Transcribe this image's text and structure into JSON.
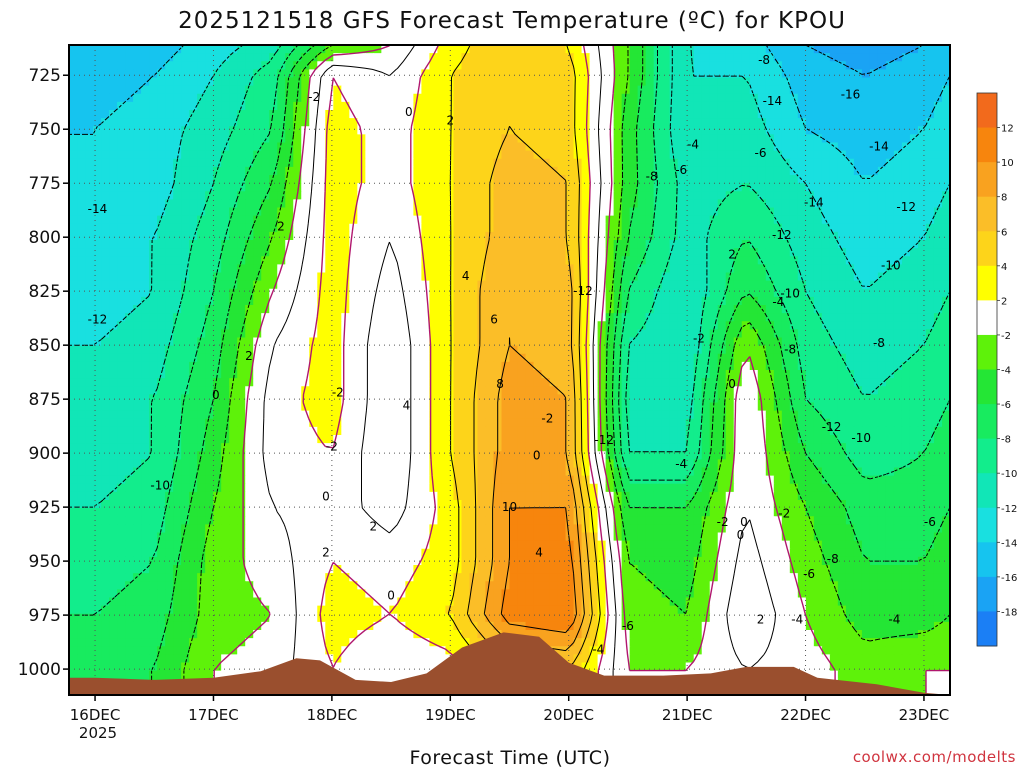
{
  "chart_data": {
    "type": "heatmap",
    "title": "2025121518 GFS Forecast Temperature (ºC) for KPOU",
    "xlabel": "Forecast Time (UTC)",
    "ylabel": "",
    "credit": "coolwx.com/modelts",
    "x_ticks": [
      "16DEC",
      "17DEC",
      "18DEC",
      "19DEC",
      "20DEC",
      "21DEC",
      "22DEC",
      "23DEC"
    ],
    "x_year": "2025",
    "y_ticks": [
      "725",
      "750",
      "775",
      "800",
      "825",
      "850",
      "875",
      "900",
      "925",
      "950",
      "975",
      "1000"
    ],
    "ylim": [
      1012,
      711
    ],
    "xlim": [
      -0.22,
      7.22
    ],
    "x_days": [
      0,
      0.5,
      1,
      1.5,
      2,
      2.5,
      3,
      3.5,
      4,
      4.5,
      5,
      5.5,
      6,
      6.5,
      7,
      7.22
    ],
    "p_levels": [
      711,
      725,
      750,
      775,
      800,
      825,
      850,
      875,
      900,
      925,
      950,
      975,
      1000,
      1012
    ],
    "grid": true,
    "colorbar": {
      "ticks": [
        "12",
        "10",
        "8",
        "6",
        "4",
        "2",
        "-2",
        "-4",
        "-6",
        "-8",
        "-10",
        "-12",
        "-14",
        "-16",
        "-18"
      ],
      "bands": [
        {
          "min": 12,
          "max": 14,
          "color": "#f26a1c"
        },
        {
          "min": 10,
          "max": 12,
          "color": "#f7850d"
        },
        {
          "min": 8,
          "max": 10,
          "color": "#f9a21f"
        },
        {
          "min": 6,
          "max": 8,
          "color": "#fbbe28"
        },
        {
          "min": 4,
          "max": 6,
          "color": "#fdd41a"
        },
        {
          "min": 2,
          "max": 4,
          "color": "#ffff00"
        },
        {
          "min": -2,
          "max": 2,
          "color": "#ffffff"
        },
        {
          "min": -4,
          "max": -2,
          "color": "#5ef20a"
        },
        {
          "min": -6,
          "max": -4,
          "color": "#24e635"
        },
        {
          "min": -8,
          "max": -6,
          "color": "#18eb5f"
        },
        {
          "min": -10,
          "max": -8,
          "color": "#12ed8c"
        },
        {
          "min": -12,
          "max": -10,
          "color": "#11e6b7"
        },
        {
          "min": -14,
          "max": -12,
          "color": "#19e0e0"
        },
        {
          "min": -16,
          "max": -14,
          "color": "#16c4ef"
        },
        {
          "min": -18,
          "max": -16,
          "color": "#1aa3f4"
        },
        {
          "min": -20,
          "max": -18,
          "color": "#1b7ff5"
        }
      ]
    },
    "temperature_grid": [
      [
        -16,
        -15,
        -13,
        -11,
        -4,
        -2,
        3,
        6,
        4,
        -4,
        -12,
        -13,
        -16,
        -17,
        -16,
        -15
      ],
      [
        -15,
        -14,
        -12,
        -9,
        2,
        0,
        4,
        6,
        5,
        -4,
        -12,
        -12,
        -15,
        -16,
        -15,
        -14
      ],
      [
        -14,
        -13,
        -11,
        -8,
        3,
        1,
        4,
        6,
        5,
        -5,
        -12,
        -11,
        -14,
        -15,
        -14,
        -13
      ],
      [
        -14,
        -13,
        -10,
        -6,
        3,
        1,
        4,
        7,
        6,
        -5,
        -11,
        -10,
        -12,
        -14,
        -13,
        -12
      ],
      [
        -13,
        -12,
        -9,
        -4,
        3,
        0,
        4,
        7,
        6,
        -6,
        -11,
        -8,
        -11,
        -13,
        -12,
        -11
      ],
      [
        -13,
        -12,
        -8,
        -2,
        3,
        -1,
        4,
        8,
        7,
        -8,
        -12,
        -6,
        -10,
        -12,
        -11,
        -10
      ],
      [
        -12,
        -11,
        -7,
        0,
        3,
        -2,
        4,
        8,
        7,
        -10,
        -12,
        -2,
        -9,
        -11,
        -10,
        -9
      ],
      [
        -11,
        -10,
        -6,
        1,
        3,
        -2,
        4,
        9,
        8,
        -11,
        -11,
        0,
        -8,
        -10,
        -9,
        -8
      ],
      [
        -11,
        -10,
        -5,
        1,
        2,
        -2,
        4,
        9,
        8,
        -10,
        -10,
        0,
        -6,
        -9,
        -8,
        -7
      ],
      [
        -10,
        -9,
        -4,
        0,
        1,
        -1,
        3,
        10,
        10,
        -6,
        -6,
        0,
        -4,
        -7,
        -7,
        -6
      ],
      [
        -9,
        -8,
        -3,
        -1,
        2,
        1,
        3,
        10,
        11,
        -4,
        -5,
        1,
        -3,
        -6,
        -6,
        -5
      ],
      [
        -8,
        -7,
        -3,
        -2,
        3,
        2,
        4,
        11,
        12,
        -3,
        -4,
        2,
        -2,
        -5,
        -5,
        -4
      ],
      [
        -7,
        -6,
        -2,
        -1,
        2,
        0,
        1,
        5,
        6,
        -2,
        -2,
        0,
        -1,
        -3,
        -2,
        -2
      ],
      [
        -7,
        -6,
        -2,
        -1,
        2,
        0,
        1,
        5,
        6,
        -2,
        -2,
        0,
        -1,
        -3,
        -2,
        -2
      ]
    ],
    "contour_labels": [
      {
        "text": "-14",
        "x": 0.02,
        "p": 787
      },
      {
        "text": "-12",
        "x": 0.02,
        "p": 838
      },
      {
        "text": "-10",
        "x": 0.55,
        "p": 915
      },
      {
        "text": "0",
        "x": 1.02,
        "p": 873
      },
      {
        "text": "2",
        "x": 1.3,
        "p": 855
      },
      {
        "text": "2",
        "x": 1.57,
        "p": 795
      },
      {
        "text": "-2",
        "x": 1.85,
        "p": 735
      },
      {
        "text": "-2",
        "x": 2.05,
        "p": 872
      },
      {
        "text": "-2",
        "x": 2.0,
        "p": 897
      },
      {
        "text": "0",
        "x": 1.95,
        "p": 920
      },
      {
        "text": "2",
        "x": 1.95,
        "p": 946
      },
      {
        "text": "0",
        "x": 2.5,
        "p": 966
      },
      {
        "text": "2",
        "x": 2.35,
        "p": 934
      },
      {
        "text": "4",
        "x": 2.63,
        "p": 878
      },
      {
        "text": "0",
        "x": 2.65,
        "p": 742
      },
      {
        "text": "2",
        "x": 3.0,
        "p": 746
      },
      {
        "text": "4",
        "x": 3.13,
        "p": 818
      },
      {
        "text": "6",
        "x": 3.37,
        "p": 838
      },
      {
        "text": "8",
        "x": 3.42,
        "p": 868
      },
      {
        "text": "10",
        "x": 3.5,
        "p": 925
      },
      {
        "text": "4",
        "x": 3.75,
        "p": 946
      },
      {
        "text": "0",
        "x": 3.73,
        "p": 901
      },
      {
        "text": "-2",
        "x": 3.82,
        "p": 884
      },
      {
        "text": "-12",
        "x": 4.12,
        "p": 825
      },
      {
        "text": "-12",
        "x": 4.3,
        "p": 894
      },
      {
        "text": "-4",
        "x": 4.25,
        "p": 991
      },
      {
        "text": "-6",
        "x": 4.5,
        "p": 980
      },
      {
        "text": "-8",
        "x": 4.7,
        "p": 772
      },
      {
        "text": "-6",
        "x": 4.95,
        "p": 769
      },
      {
        "text": "-4",
        "x": 5.05,
        "p": 757
      },
      {
        "text": "-4",
        "x": 4.95,
        "p": 905
      },
      {
        "text": "-2",
        "x": 5.1,
        "p": 847
      },
      {
        "text": "2",
        "x": 5.38,
        "p": 808
      },
      {
        "text": "0",
        "x": 5.38,
        "p": 868
      },
      {
        "text": "-2",
        "x": 5.3,
        "p": 932
      },
      {
        "text": "0",
        "x": 5.48,
        "p": 932
      },
      {
        "text": "0",
        "x": 5.45,
        "p": 938
      },
      {
        "text": "-8",
        "x": 5.65,
        "p": 718
      },
      {
        "text": "-14",
        "x": 5.72,
        "p": 737
      },
      {
        "text": "-6",
        "x": 5.62,
        "p": 761
      },
      {
        "text": "-12",
        "x": 5.8,
        "p": 799
      },
      {
        "text": "-10",
        "x": 5.87,
        "p": 826
      },
      {
        "text": "-8",
        "x": 5.87,
        "p": 852
      },
      {
        "text": "-4",
        "x": 5.77,
        "p": 830
      },
      {
        "text": "-4",
        "x": 5.93,
        "p": 977
      },
      {
        "text": "2",
        "x": 5.62,
        "p": 977
      },
      {
        "text": "-2",
        "x": 5.82,
        "p": 928
      },
      {
        "text": "-6",
        "x": 6.03,
        "p": 956
      },
      {
        "text": "-8",
        "x": 6.23,
        "p": 949
      },
      {
        "text": "-16",
        "x": 6.38,
        "p": 734
      },
      {
        "text": "-14",
        "x": 6.07,
        "p": 784
      },
      {
        "text": "-14",
        "x": 6.62,
        "p": 758
      },
      {
        "text": "-12",
        "x": 6.85,
        "p": 786
      },
      {
        "text": "-10",
        "x": 6.72,
        "p": 813
      },
      {
        "text": "-8",
        "x": 6.62,
        "p": 849
      },
      {
        "text": "-10",
        "x": 6.47,
        "p": 893
      },
      {
        "text": "-12",
        "x": 6.22,
        "p": 888
      },
      {
        "text": "-6",
        "x": 7.05,
        "p": 932
      },
      {
        "text": "-4",
        "x": 6.75,
        "p": 977
      }
    ],
    "terrain_pressure": [
      {
        "x": -0.22,
        "p": 1004
      },
      {
        "x": 0.0,
        "p": 1004
      },
      {
        "x": 0.5,
        "p": 1005
      },
      {
        "x": 1.0,
        "p": 1004
      },
      {
        "x": 1.4,
        "p": 1001
      },
      {
        "x": 1.7,
        "p": 995
      },
      {
        "x": 1.9,
        "p": 996
      },
      {
        "x": 2.2,
        "p": 1005
      },
      {
        "x": 2.5,
        "p": 1006
      },
      {
        "x": 2.8,
        "p": 1002
      },
      {
        "x": 3.1,
        "p": 990
      },
      {
        "x": 3.45,
        "p": 983
      },
      {
        "x": 3.75,
        "p": 985
      },
      {
        "x": 4.0,
        "p": 997
      },
      {
        "x": 4.3,
        "p": 1003
      },
      {
        "x": 4.8,
        "p": 1003
      },
      {
        "x": 5.2,
        "p": 1002
      },
      {
        "x": 5.5,
        "p": 999
      },
      {
        "x": 5.9,
        "p": 999
      },
      {
        "x": 6.1,
        "p": 1004
      },
      {
        "x": 6.6,
        "p": 1007
      },
      {
        "x": 7.0,
        "p": 1011
      },
      {
        "x": 7.22,
        "p": 1012
      }
    ]
  }
}
